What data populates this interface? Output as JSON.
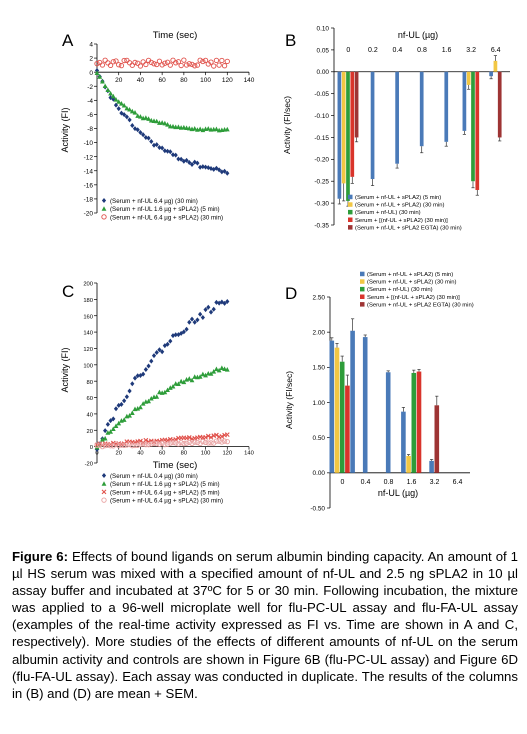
{
  "panels": {
    "A": {
      "letter": "A",
      "chart_data": {
        "type": "scatter",
        "title": "Time (sec)",
        "xlabel": "",
        "ylabel": "Activity (FI)",
        "xlim": [
          0,
          140
        ],
        "ylim": [
          -20,
          4
        ],
        "x_ticks": [
          20,
          40,
          60,
          80,
          100,
          120,
          140
        ],
        "y_ticks": [
          4,
          2,
          0,
          -2,
          -4,
          -6,
          -8,
          -10,
          -12,
          -14,
          -16,
          -18,
          -20
        ],
        "legend_position": "bottom-left",
        "series": [
          {
            "name": "(Serum + nf-UL 6.4 µg) (30 min)",
            "color": "#1f3a7a",
            "marker": "diamond",
            "curve": {
              "kind": "exp",
              "plateau": -15.6,
              "rate": 0.02
            },
            "x_start": 0,
            "x_end": 122,
            "x_step": 2.5
          },
          {
            "name": "(Serum + nf-UL 1.6 µg + sPLA2) (5 min)",
            "color": "#2e9d3a",
            "marker": "triangle",
            "curve": {
              "kind": "exp",
              "plateau": -8.4,
              "rate": 0.034
            },
            "x_start": 0,
            "x_end": 122,
            "x_step": 2.5
          },
          {
            "name": "(Serum + nf-UL 6.4 µg + sPLA2) (30 min)",
            "color": "#e0504a",
            "marker": "circle-open",
            "curve": {
              "kind": "flat",
              "value": 1.3,
              "jitter": 0.45
            },
            "x_start": 0,
            "x_end": 122,
            "x_step": 2.5
          }
        ]
      }
    },
    "B": {
      "letter": "B",
      "chart_data": {
        "type": "bar",
        "title": "nf-UL (µg)",
        "xlabel": "",
        "ylabel": "Activity (FI/sec)",
        "categories": [
          "0",
          "0.2",
          "0.4",
          "0.8",
          "1.6",
          "3.2",
          "6.4"
        ],
        "ylim": [
          -0.35,
          0.1
        ],
        "y_ticks": [
          0.1,
          0.05,
          0.0,
          -0.05,
          -0.1,
          -0.15,
          -0.2,
          -0.25,
          -0.3,
          -0.35
        ],
        "legend_position": "bottom",
        "series": [
          {
            "name": "(Serum + nf-UL + sPLA2) (5 min)",
            "color": "#4a7ab8",
            "values": [
              -0.29,
              -0.245,
              -0.21,
              -0.17,
              -0.16,
              -0.135,
              -0.01
            ],
            "errors": [
              0.012,
              0.015,
              0.01,
              0.015,
              0.01,
              0.008,
              0.006
            ]
          },
          {
            "name": "(Serum + nf-UL + sPLA2) (30 min)",
            "color": "#f2c744",
            "values": [
              -0.255,
              null,
              null,
              null,
              null,
              -0.03,
              0.025
            ],
            "errors": [
              0.04,
              null,
              null,
              null,
              null,
              0.01,
              0.012
            ]
          },
          {
            "name": "(Serum + nf-UL) (30 min)",
            "color": "#2e9d3a",
            "values": [
              -0.295,
              null,
              null,
              null,
              null,
              -0.25,
              null
            ],
            "errors": [
              0.012,
              null,
              null,
              null,
              null,
              0.015,
              null
            ]
          },
          {
            "name": "Serum + [(nf-UL + sPLA2) (30 min)]",
            "color": "#d9342b",
            "values": [
              -0.24,
              null,
              null,
              null,
              null,
              -0.27,
              null
            ],
            "errors": [
              0.015,
              null,
              null,
              null,
              null,
              0.012,
              null
            ]
          },
          {
            "name": "(Serum + nf-UL + sPLA2 EGTA) (30 min)",
            "color": "#9e3434",
            "values": [
              -0.15,
              null,
              null,
              null,
              null,
              null,
              -0.15
            ],
            "errors": [
              0.01,
              null,
              null,
              null,
              null,
              null,
              0.008
            ]
          }
        ]
      }
    },
    "C": {
      "letter": "C",
      "chart_data": {
        "type": "scatter",
        "title": "",
        "xlabel": "Time (sec)",
        "ylabel": "Activity (FI)",
        "xlim": [
          0,
          140
        ],
        "ylim": [
          -20,
          200
        ],
        "x_ticks": [
          0,
          20,
          40,
          60,
          80,
          100,
          120,
          140
        ],
        "y_ticks": [
          200,
          180,
          160,
          140,
          120,
          100,
          80,
          60,
          40,
          20,
          0,
          -20
        ],
        "legend_position": "bottom-left",
        "series": [
          {
            "name": "(Serum + nf-UL 0.4 µg) (30 min)",
            "color": "#1f3a7a",
            "marker": "diamond",
            "curve": {
              "kind": "exp",
              "plateau": 240,
              "rate": 0.0115
            },
            "x_start": 0,
            "x_end": 122,
            "x_step": 2.5
          },
          {
            "name": "(Serum + nf-UL 1.6 µg + sPLA2) (5 min)",
            "color": "#2e9d3a",
            "marker": "triangle",
            "curve": {
              "kind": "exp",
              "plateau": 120,
              "rate": 0.0135
            },
            "x_start": 0,
            "x_end": 122,
            "x_step": 2.5
          },
          {
            "name": "(Serum + nf-UL 6.4 µg + sPLA2) (5 min)",
            "color": "#e0504a",
            "marker": "x",
            "curve": {
              "kind": "linear",
              "start": 2,
              "end": 14,
              "jitter": 1.5
            },
            "x_start": 0,
            "x_end": 122,
            "x_step": 2.5
          },
          {
            "name": "(Serum + nf-UL 6.4 µg + sPLA2) (30 min)",
            "color": "#e8a0a0",
            "marker": "circle-open",
            "curve": {
              "kind": "linear",
              "start": 1,
              "end": 6,
              "jitter": 1.2
            },
            "x_start": 0,
            "x_end": 122,
            "x_step": 2.5
          }
        ]
      }
    },
    "D": {
      "letter": "D",
      "chart_data": {
        "type": "bar",
        "title": "",
        "xlabel": "nf-UL (µg)",
        "ylabel": "Activity (FI/sec)",
        "categories": [
          "0",
          "0.4",
          "0.8",
          "1.6",
          "3.2",
          "6.4"
        ],
        "ylim": [
          -0.5,
          2.5
        ],
        "y_ticks": [
          2.5,
          2.0,
          1.5,
          1.0,
          0.5,
          0.0,
          -0.5
        ],
        "legend_position": "top",
        "series": [
          {
            "name": "(Serum + nf-UL + sPLA2) (5 min)",
            "color": "#4a7ab8",
            "values": [
              1.88,
              1.93,
              1.43,
              0.87,
              0.17,
              null
            ],
            "errors": [
              0.04,
              0.03,
              0.02,
              0.06,
              0.02,
              null
            ],
            "extra_bar": {
              "value": 2.02,
              "error": 0.17
            }
          },
          {
            "name": "(Serum + nf-UL + sPLA2) (30 min)",
            "color": "#f2c744",
            "values": [
              1.78,
              null,
              null,
              0.24,
              null,
              null
            ],
            "errors": [
              0.06,
              null,
              null,
              0.02,
              null,
              null
            ]
          },
          {
            "name": "(Serum + nf-UL) (30 min)",
            "color": "#2e9d3a",
            "values": [
              1.58,
              null,
              null,
              1.42,
              null,
              null
            ],
            "errors": [
              0.08,
              null,
              null,
              0.04,
              null,
              null
            ]
          },
          {
            "name": "Serum + [(nf-UL + sPLA2) (30 min)]",
            "color": "#d9342b",
            "values": [
              1.24,
              null,
              null,
              1.44,
              null,
              null
            ],
            "errors": [
              0.15,
              null,
              null,
              0.03,
              null,
              null
            ]
          },
          {
            "name": "(Serum + nf-UL + sPLA2 EGTA) (30 min)",
            "color": "#9e3434",
            "values": [
              null,
              null,
              null,
              null,
              0.96,
              null
            ],
            "errors": [
              null,
              null,
              null,
              null,
              0.13,
              null
            ]
          }
        ]
      }
    }
  },
  "caption": {
    "label": "Figure 6:",
    "text": "Effects of bound ligands on serum albumin binding capacity. An amount of 1 µl HS serum was mixed with a specified amount of nf-UL and 2.5 ng sPLA2 in 10 µl assay buffer and incubated at 37ºC for 5 or 30 min. Following incubation, the mixture was applied to a 96-well microplate well for flu-PC-UL assay and flu-FA-UL assay (examples of the real-time activity expressed as FI vs. Time are shown in A and C, respectively). More studies of the effects of different amounts of nf-UL on the serum albumin activity and controls are shown in Figure 6B (flu-PC-UL assay) and Figure 6D (flu-FA-UL assay). Each assay was conducted in duplicate. The results of the columns in (B) and (D) are mean + SEM."
  }
}
